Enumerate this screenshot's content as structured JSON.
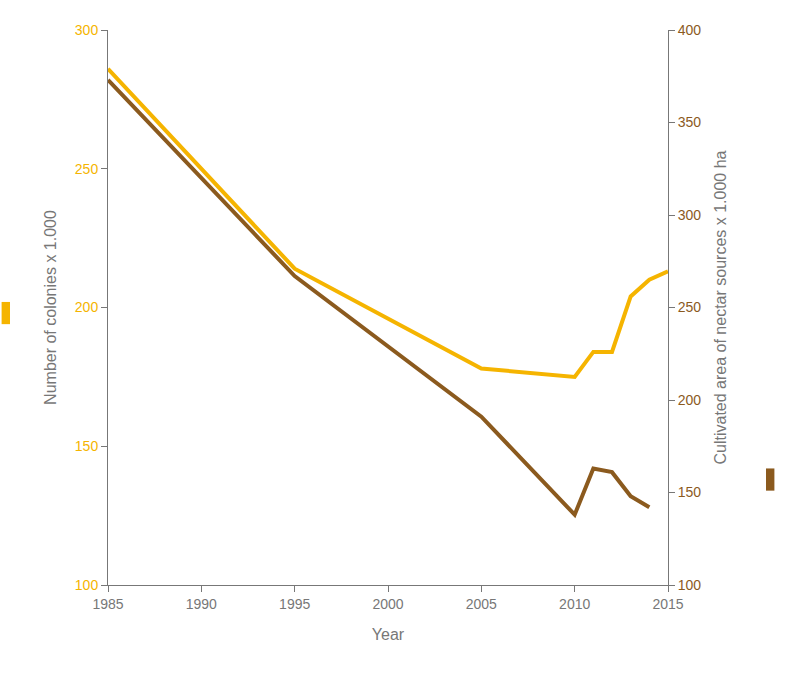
{
  "chart_data": {
    "type": "line",
    "x_label": "Year",
    "y_label": "Number of colonies x 1.000",
    "y2_label": "Cultivated area of nectar sources x 1.000 ha",
    "x": [
      1985,
      1995,
      2005,
      2010,
      2011,
      2012,
      2013,
      2014,
      2015
    ],
    "series": [
      {
        "name": "Number of colonies x 1.000",
        "color": "#f5b400",
        "axis": "y",
        "values": [
          286,
          214,
          178,
          175,
          184,
          184,
          204,
          210,
          213
        ]
      },
      {
        "name": "Cultivated area of nectar sources x 1.000 ha",
        "color": "#8b5a1e",
        "axis": "y2",
        "values": [
          373,
          267,
          191,
          138,
          163,
          161,
          148,
          142,
          null
        ]
      }
    ],
    "xlim": [
      1985,
      2015
    ],
    "xticks": [
      1985,
      1990,
      1995,
      2000,
      2005,
      2010,
      2015
    ],
    "ylim": [
      100,
      300
    ],
    "yticks": [
      100,
      150,
      200,
      250,
      300
    ],
    "y2lim": [
      100,
      400
    ],
    "y2ticks": [
      100,
      150,
      200,
      250,
      300,
      350,
      400
    ],
    "grid": false
  }
}
